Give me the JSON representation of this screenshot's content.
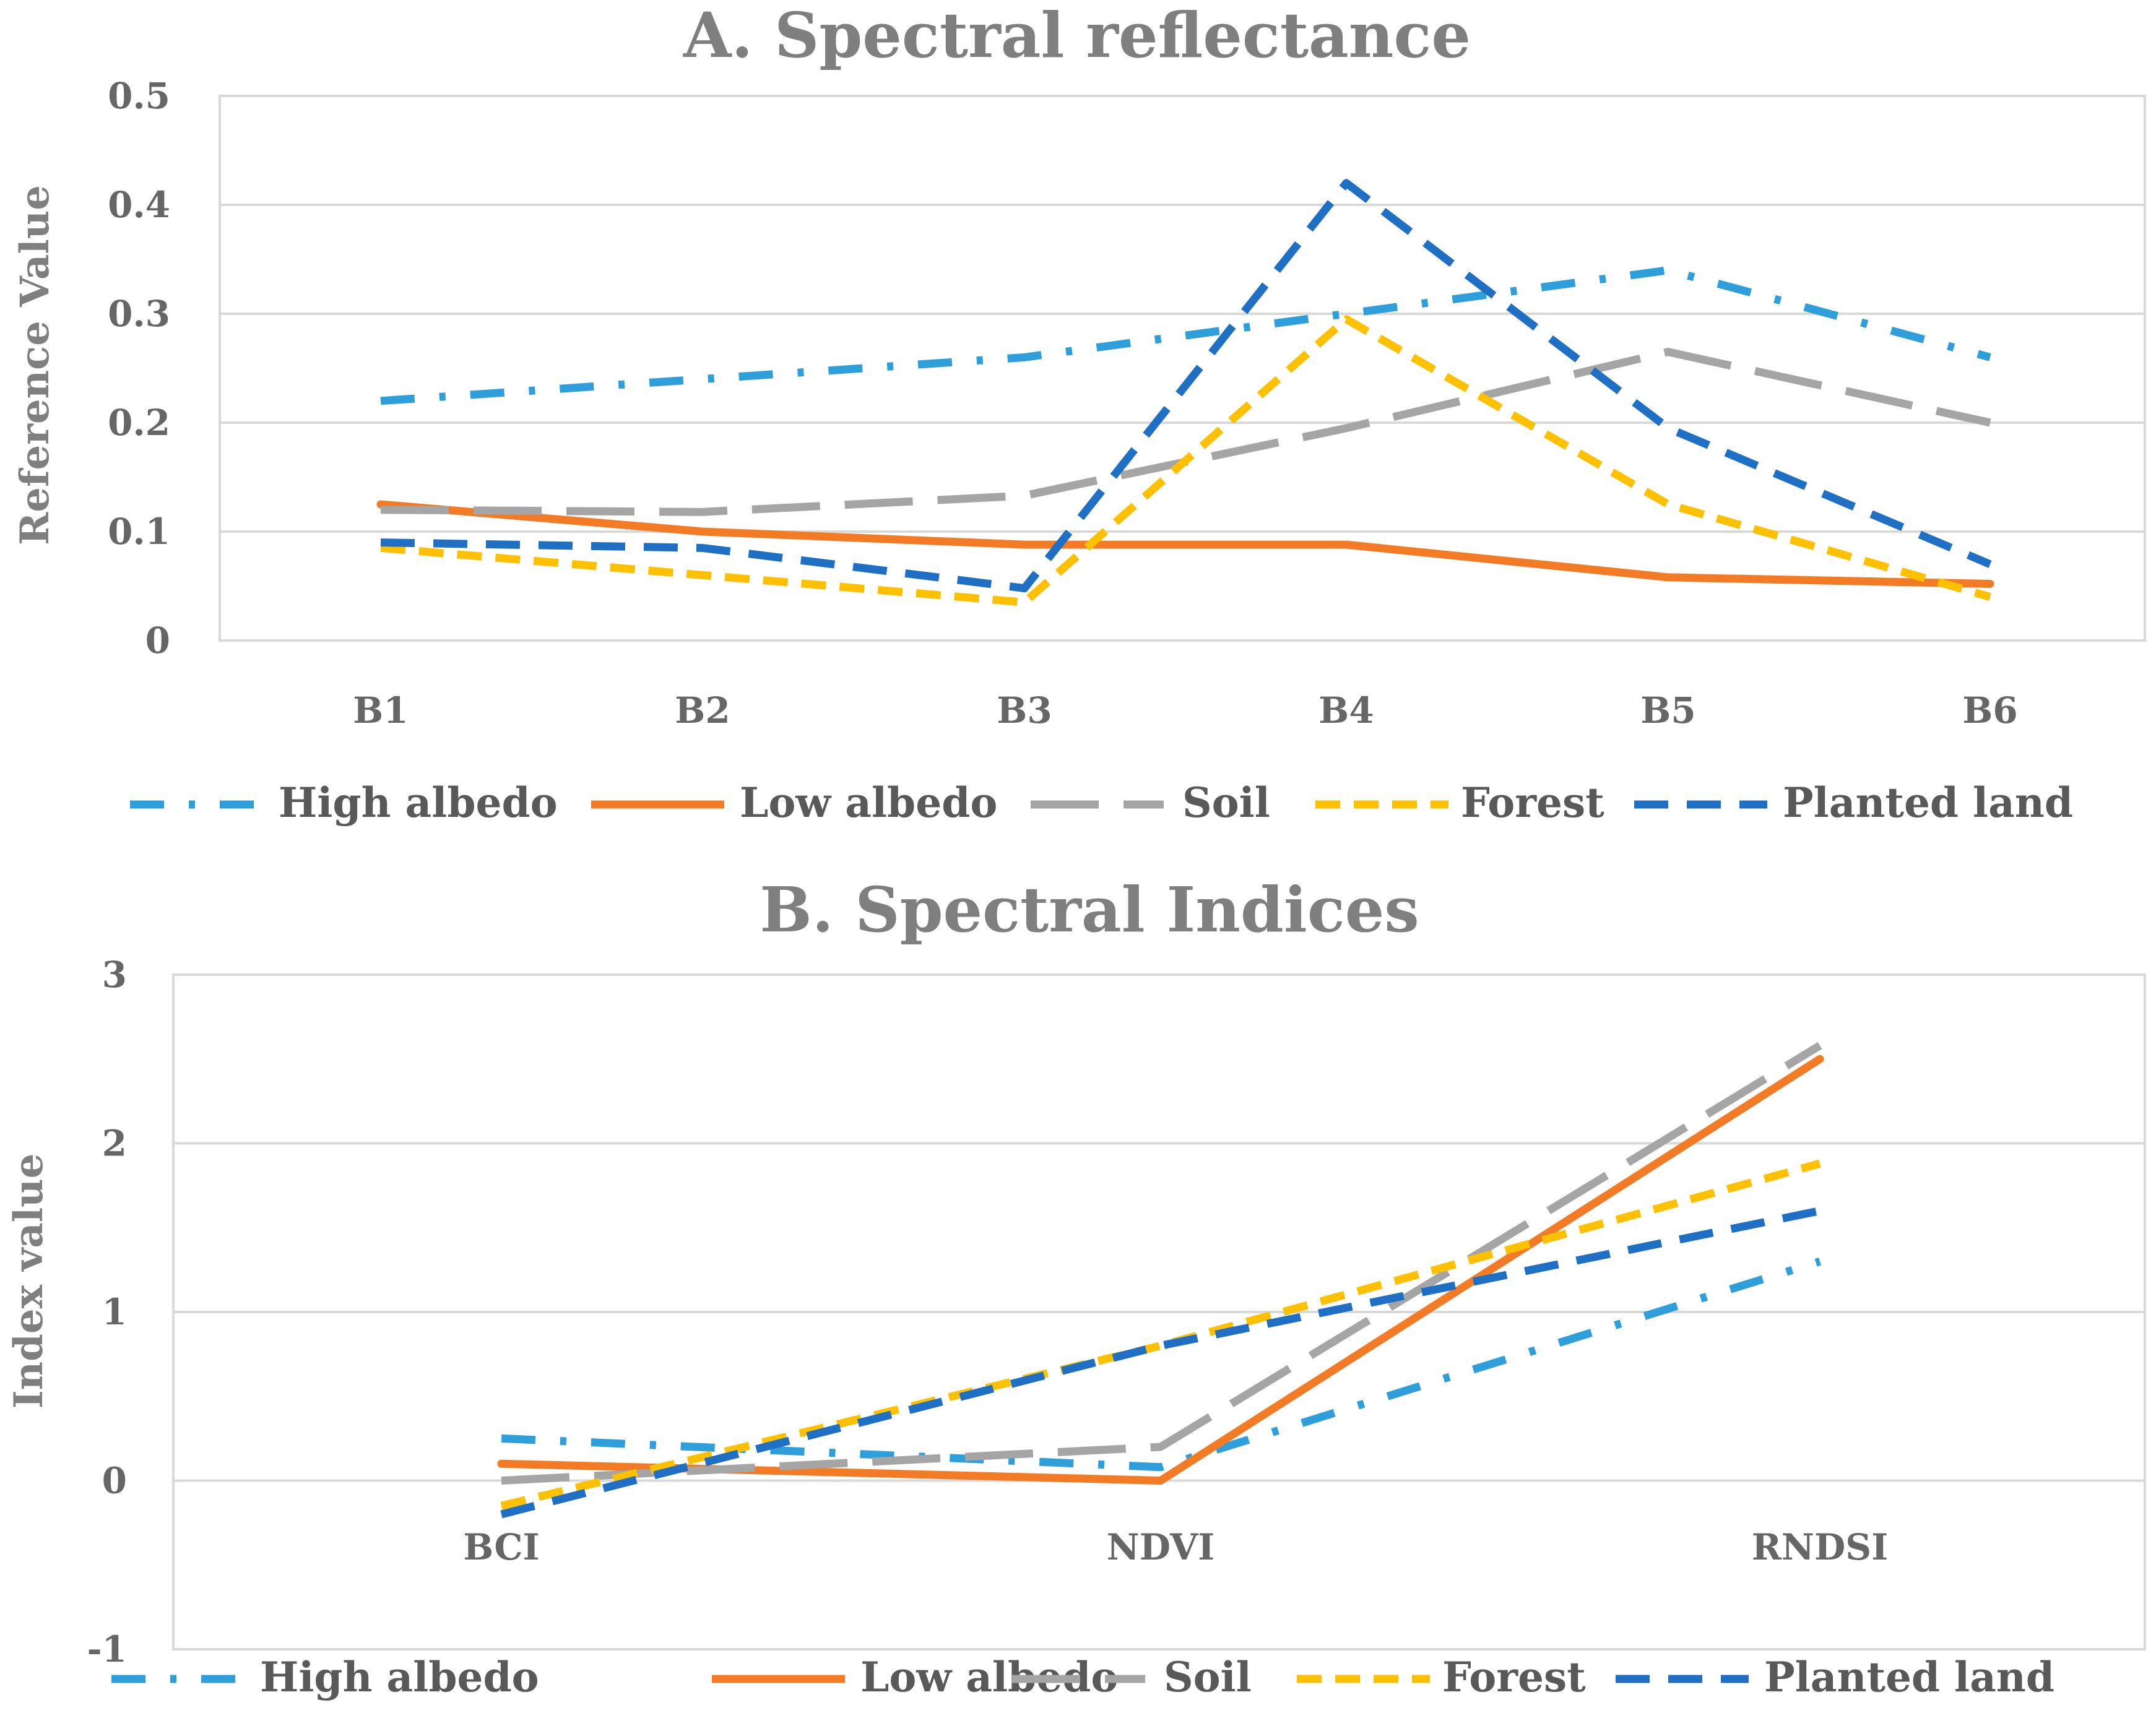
{
  "chart_data": [
    {
      "type": "line",
      "title": "A. Spectral reflectance",
      "xlabel": "",
      "ylabel": "Reference Value",
      "categories": [
        "B1",
        "B2",
        "B3",
        "B4",
        "B5",
        "B6"
      ],
      "ylim": [
        0,
        0.5
      ],
      "yticks": [
        "0",
        "0.1",
        "0.2",
        "0.3",
        "0.4",
        "0.5"
      ],
      "grid": true,
      "legend": "bottom",
      "series": [
        {
          "name": "High albedo",
          "color": "#2E9FDB",
          "values": [
            0.22,
            0.24,
            0.26,
            0.3,
            0.34,
            0.26
          ]
        },
        {
          "name": "Low albedo",
          "color": "#F47B25",
          "values": [
            0.125,
            0.1,
            0.088,
            0.088,
            0.058,
            0.052
          ]
        },
        {
          "name": "Soil",
          "color": "#A5A5A5",
          "values": [
            0.12,
            0.118,
            0.133,
            0.195,
            0.265,
            0.2
          ]
        },
        {
          "name": "Forest",
          "color": "#FFC000",
          "values": [
            0.085,
            0.06,
            0.035,
            0.295,
            0.125,
            0.04
          ]
        },
        {
          "name": "Planted land",
          "color": "#1F6FC5",
          "values": [
            0.09,
            0.085,
            0.048,
            0.42,
            0.195,
            0.07
          ]
        }
      ]
    },
    {
      "type": "line",
      "title": "B. Spectral Indices",
      "xlabel": "",
      "ylabel": "Index value",
      "categories": [
        "BCI",
        "NDVI",
        "RNDSI"
      ],
      "ylim": [
        -1,
        3
      ],
      "yticks": [
        "-1",
        "0",
        "1",
        "2",
        "3"
      ],
      "grid": true,
      "legend": "bottom",
      "series": [
        {
          "name": "High albedo",
          "color": "#2E9FDB",
          "values": [
            0.25,
            0.08,
            1.3
          ]
        },
        {
          "name": "Low albedo",
          "color": "#F47B25",
          "values": [
            0.1,
            0.0,
            2.5
          ]
        },
        {
          "name": "Soil",
          "color": "#A5A5A5",
          "values": [
            0.0,
            0.2,
            2.58
          ]
        },
        {
          "name": "Forest",
          "color": "#FFC000",
          "values": [
            -0.15,
            0.8,
            1.88
          ]
        },
        {
          "name": "Planted land",
          "color": "#1F6FC5",
          "values": [
            -0.2,
            0.8,
            1.6
          ]
        }
      ]
    }
  ]
}
